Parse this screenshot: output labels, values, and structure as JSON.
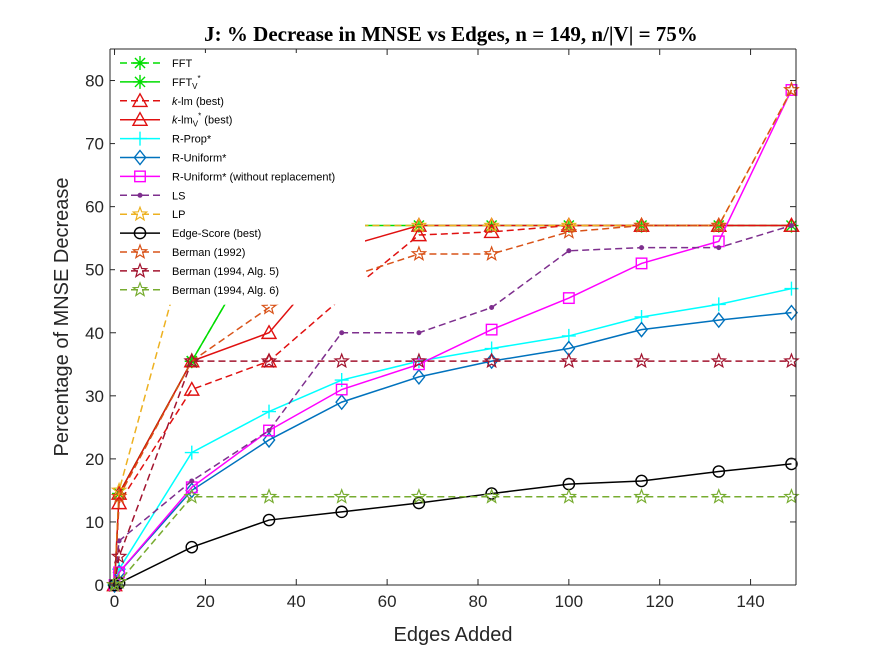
{
  "chart_data": {
    "type": "line",
    "title": "J: % Decrease in MNSE vs Edges, n = 149, n/|V| = 75%",
    "xlabel": "Edges Added",
    "ylabel": "Percentage of MNSE Decrease",
    "xlim": [
      -1,
      150
    ],
    "ylim": [
      0,
      85
    ],
    "xticks": [
      0,
      20,
      40,
      60,
      80,
      100,
      120,
      140
    ],
    "yticks": [
      0,
      10,
      20,
      30,
      40,
      50,
      60,
      70,
      80
    ],
    "grid": false,
    "legend_position": "top-left",
    "series": [
      {
        "name": "FFT",
        "label_main": "FFT",
        "label_sub": "",
        "label_sup": "",
        "label_tail": "",
        "italic_prefix": "",
        "color": "#00dd00",
        "dash": "dashed",
        "marker": "asterisk",
        "x": [
          0,
          1,
          17,
          34,
          50
        ],
        "y": [
          0,
          14.5,
          35.5,
          56.5,
          57
        ]
      },
      {
        "name": "FFT_V*",
        "label_main": "FFT",
        "label_sub": "V",
        "label_sup": "*",
        "label_tail": "",
        "italic_prefix": "",
        "color": "#00dd00",
        "dash": "solid",
        "marker": "asterisk",
        "x": [
          0,
          1,
          17,
          34,
          50,
          67,
          83,
          100,
          116,
          133,
          149
        ],
        "y": [
          0,
          14.5,
          35.5,
          56.5,
          57,
          57,
          57,
          57,
          57,
          57,
          57
        ]
      },
      {
        "name": "k-lm (best)",
        "label_main": "-lm (best)",
        "label_sub": "",
        "label_sup": "",
        "label_tail": "",
        "italic_prefix": "k",
        "color": "#e01010",
        "dash": "dashed",
        "marker": "triangle",
        "x": [
          0,
          1,
          17,
          34,
          50,
          67,
          83,
          100,
          116,
          133,
          149
        ],
        "y": [
          0,
          13,
          31,
          35.5,
          45.5,
          55.5,
          56,
          57,
          57,
          57,
          57
        ]
      },
      {
        "name": "k-lm_V* (best)",
        "label_main": "-lm",
        "label_sub": "V",
        "label_sup": "*",
        "label_tail": " (best)",
        "italic_prefix": "k",
        "color": "#e01010",
        "dash": "solid",
        "marker": "triangle",
        "x": [
          0,
          1,
          17,
          34,
          50,
          67,
          83,
          100,
          116,
          133,
          149
        ],
        "y": [
          0,
          14.5,
          35.5,
          40,
          53.5,
          57,
          57,
          57,
          57,
          57,
          57
        ]
      },
      {
        "name": "R-Prop*",
        "label_main": "R-Prop*",
        "label_sub": "",
        "label_sup": "",
        "label_tail": "",
        "italic_prefix": "",
        "color": "#00ffff",
        "dash": "solid",
        "marker": "plus",
        "x": [
          0,
          1,
          17,
          34,
          50,
          67,
          83,
          100,
          116,
          133,
          149
        ],
        "y": [
          0,
          2.5,
          21,
          27.5,
          32.5,
          35.5,
          37.5,
          39.5,
          42.5,
          44.5,
          47
        ]
      },
      {
        "name": "R-Uniform*",
        "label_main": "R-Uniform*",
        "label_sub": "",
        "label_sup": "",
        "label_tail": "",
        "italic_prefix": "",
        "color": "#0072bd",
        "dash": "solid",
        "marker": "diamond",
        "x": [
          0,
          1,
          17,
          34,
          50,
          67,
          83,
          100,
          116,
          133,
          149
        ],
        "y": [
          0,
          2,
          15,
          23,
          29,
          33,
          35.5,
          37.5,
          40.5,
          42,
          43.2
        ]
      },
      {
        "name": "R-Uniform* (without replacement)",
        "label_main": "R-Uniform* (without replacement)",
        "label_sub": "",
        "label_sup": "",
        "label_tail": "",
        "italic_prefix": "",
        "color": "#ff00ff",
        "dash": "solid",
        "marker": "square",
        "x": [
          0,
          1,
          17,
          34,
          50,
          67,
          83,
          100,
          116,
          133,
          149
        ],
        "y": [
          0,
          2,
          15.5,
          24.5,
          31,
          35,
          40.5,
          45.5,
          51,
          54.5,
          78.5
        ]
      },
      {
        "name": "LS",
        "label_main": "LS",
        "label_sub": "",
        "label_sup": "",
        "label_tail": "",
        "italic_prefix": "",
        "color": "#7e2f8e",
        "dash": "dashed",
        "marker": "dot",
        "x": [
          0,
          1,
          17,
          34,
          50,
          67,
          83,
          100,
          116,
          133,
          149
        ],
        "y": [
          0,
          7,
          16.5,
          24.5,
          40,
          40,
          44,
          53,
          53.5,
          53.5,
          57
        ]
      },
      {
        "name": "LP",
        "label_main": "LP",
        "label_sub": "",
        "label_sup": "",
        "label_tail": "",
        "italic_prefix": "",
        "color": "#edb120",
        "dash": "dashed",
        "marker": "star",
        "x": [
          0,
          1,
          17,
          34,
          50,
          67,
          83,
          100,
          116,
          133,
          149
        ],
        "y": [
          0,
          15,
          57,
          57,
          57,
          57,
          57,
          57,
          57,
          57,
          78.5
        ]
      },
      {
        "name": "Edge-Score (best)",
        "label_main": "Edge-Score (best)",
        "label_sub": "",
        "label_sup": "",
        "label_tail": "",
        "italic_prefix": "",
        "color": "#000000",
        "dash": "solid",
        "marker": "circle",
        "x": [
          0,
          1,
          17,
          34,
          50,
          67,
          83,
          100,
          116,
          133,
          149
        ],
        "y": [
          0,
          0.3,
          6,
          10.3,
          11.6,
          13,
          14.5,
          16,
          16.5,
          18,
          19.2
        ]
      },
      {
        "name": "Berman (1992)",
        "label_main": "Berman (1992)",
        "label_sub": "",
        "label_sup": "",
        "label_tail": "",
        "italic_prefix": "",
        "color": "#d95319",
        "dash": "dashed",
        "marker": "star",
        "x": [
          0,
          1,
          17,
          34,
          50,
          67,
          83,
          100,
          116,
          133,
          149
        ],
        "y": [
          0,
          14,
          35.5,
          44,
          48.5,
          52.5,
          52.5,
          56,
          57,
          57,
          78.5
        ]
      },
      {
        "name": "Berman (1994, Alg. 5)",
        "label_main": "Berman (1994, Alg. 5)",
        "label_sub": "",
        "label_sup": "",
        "label_tail": "",
        "italic_prefix": "",
        "color": "#a2142f",
        "dash": "dashed",
        "marker": "star",
        "x": [
          0,
          1,
          17,
          34,
          50,
          67,
          83,
          100,
          116,
          133,
          149
        ],
        "y": [
          0,
          4.5,
          35.5,
          35.5,
          35.5,
          35.5,
          35.5,
          35.5,
          35.5,
          35.5,
          35.5
        ]
      },
      {
        "name": "Berman (1994, Alg. 6)",
        "label_main": "Berman (1994, Alg. 6)",
        "label_sub": "",
        "label_sup": "",
        "label_tail": "",
        "italic_prefix": "",
        "color": "#77ac30",
        "dash": "dashed",
        "marker": "star",
        "x": [
          0,
          1,
          17,
          34,
          50,
          67,
          83,
          100,
          116,
          133,
          149
        ],
        "y": [
          0,
          0.5,
          14,
          14,
          14,
          14,
          14,
          14,
          14,
          14,
          14
        ]
      }
    ]
  }
}
